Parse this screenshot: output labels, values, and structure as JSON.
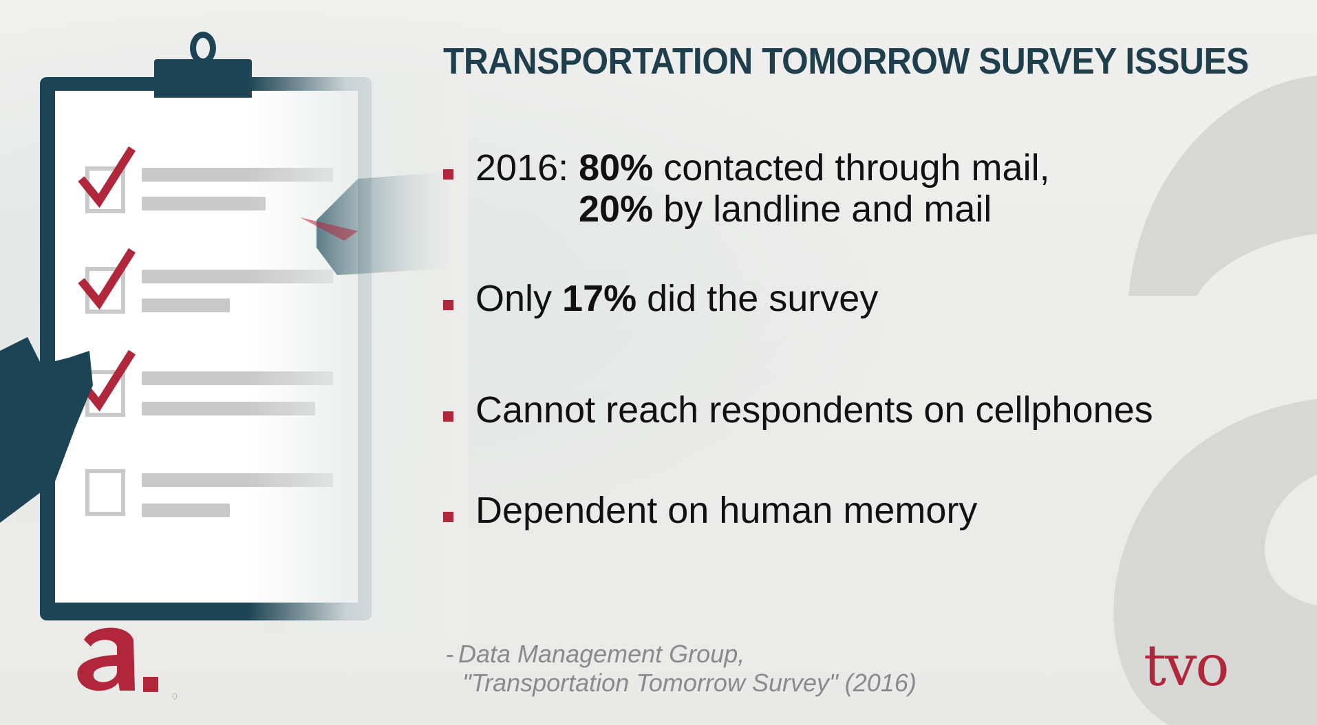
{
  "slide": {
    "title": "TRANSPORTATION TOMORROW SURVEY ISSUES",
    "bullets": [
      {
        "line1_prefix": "2016: ",
        "line1_highlight": "80%",
        "line1_rest": " contacted through mail,",
        "line2_highlight": "20%",
        "line2_rest": " by landline and mail"
      },
      {
        "prefix": "Only ",
        "highlight": "17%",
        "rest": " did the survey"
      },
      {
        "text": "Cannot reach respondents on cellphones"
      },
      {
        "text": "Dependent on human memory"
      }
    ],
    "citation": {
      "dash": "-",
      "line1": "Data Management Group,",
      "line2": "\"Transportation Tomorrow Survey\" (2016)"
    }
  },
  "branding": {
    "left_logo": "a.",
    "right_logo": "tvo",
    "tiny_mark": "0"
  },
  "icons": {
    "clipboard": "clipboard-icon",
    "checkmark": "checkmark-icon",
    "hand": "hand-icon",
    "watermark": "letter-a-watermark"
  },
  "colors": {
    "accent_red": "#b0263b",
    "title_dark_teal": "#1f3f4c",
    "clipboard_teal": "#1d4454",
    "text": "#111111",
    "citation_gray": "#8a8a8a"
  }
}
